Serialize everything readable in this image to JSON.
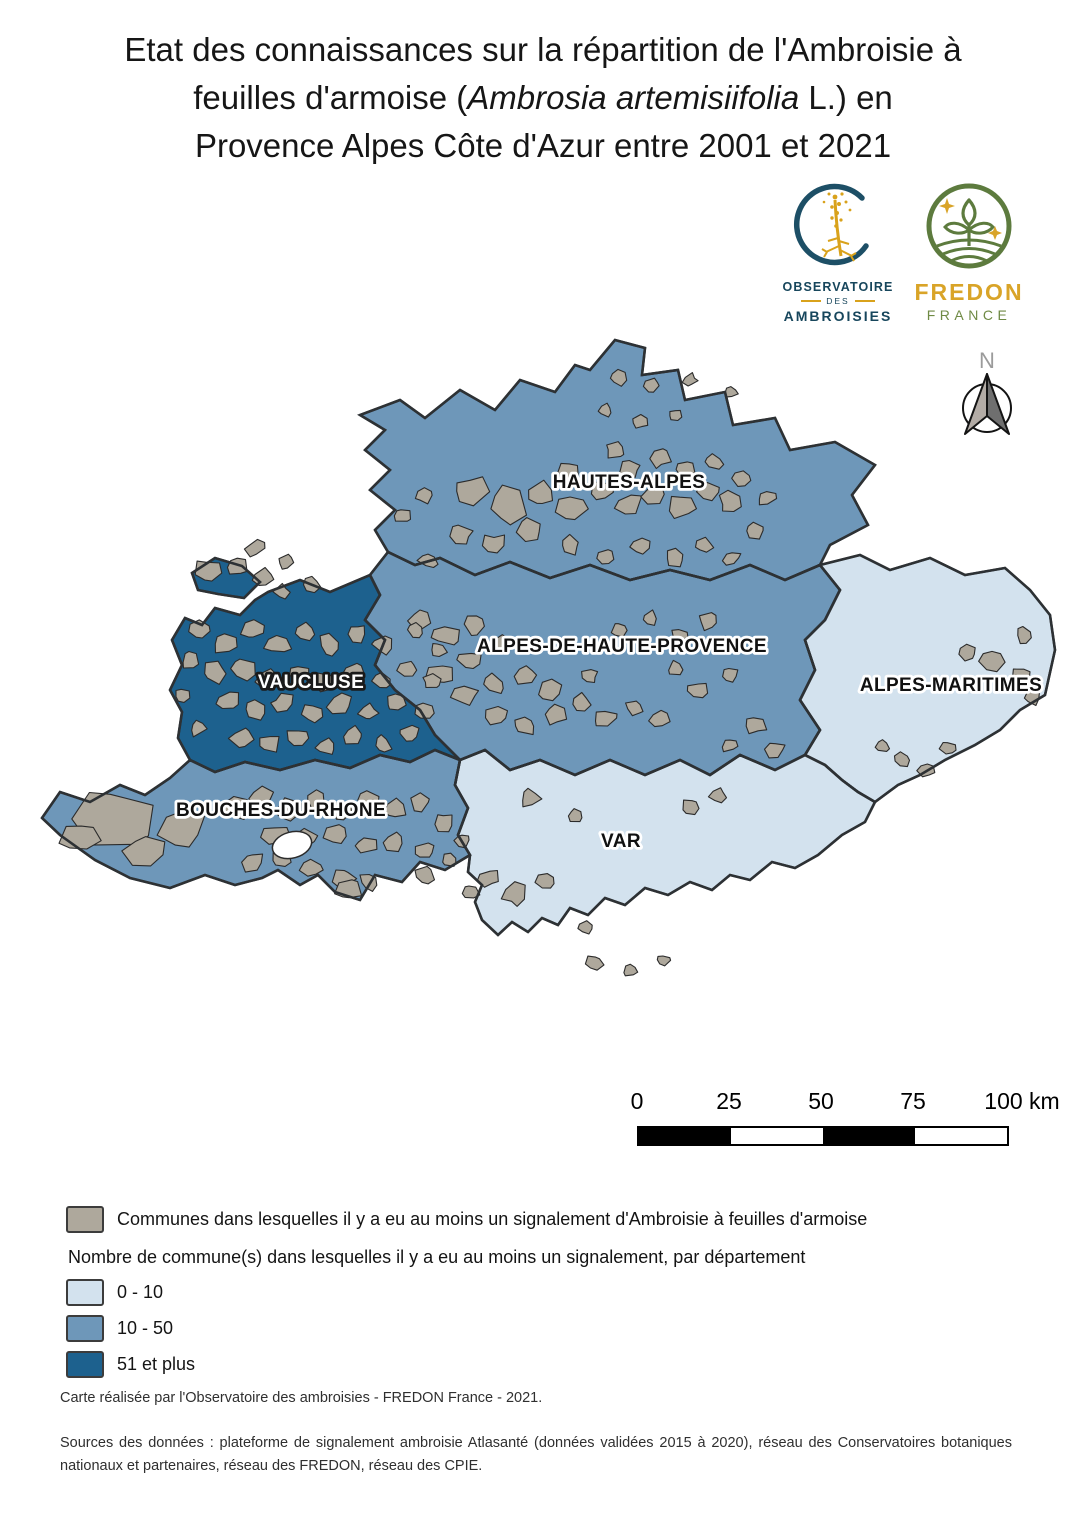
{
  "title": {
    "line1": "Etat des connaissances sur la répartition de l'Ambroisie à",
    "line2_pre": "feuilles d'armoise (",
    "line2_italic": "Ambrosia artemisiifolia",
    "line2_post": " L.) en",
    "line3": "Provence Alpes Côte d'Azur entre 2001 et 2021"
  },
  "logos": {
    "observatoire": {
      "line1": "OBSERVATOIRE",
      "line2": "DES",
      "line3": "AMBROISIES"
    },
    "fredon": {
      "name": "FREDON",
      "country": "FRANCE"
    }
  },
  "map": {
    "north_label": "N",
    "departments": [
      {
        "id": "hautes-alpes",
        "name": "HAUTES-ALPES",
        "category": "10 - 50",
        "color_key": "cat_mid"
      },
      {
        "id": "alpes-de-haute-provence",
        "name": "ALPES-DE-HAUTE-PROVENCE",
        "category": "10 - 50",
        "color_key": "cat_mid"
      },
      {
        "id": "vaucluse",
        "name": "VAUCLUSE",
        "category": "51 et plus",
        "color_key": "cat_high"
      },
      {
        "id": "bouches-du-rhone",
        "name": "BOUCHES-DU-RHONE",
        "category": "10 - 50",
        "color_key": "cat_mid"
      },
      {
        "id": "var",
        "name": "VAR",
        "category": "0 - 10",
        "color_key": "cat_low"
      },
      {
        "id": "alpes-maritimes",
        "name": "ALPES-MARITIMES",
        "category": "0 - 10",
        "color_key": "cat_low"
      }
    ]
  },
  "scalebar": {
    "labels": [
      "0",
      "25",
      "50",
      "75",
      "100 km"
    ]
  },
  "legend": {
    "commune_label": "Communes dans lesquelles il y a eu au moins un signalement d'Ambroisie à feuilles d'armoise",
    "count_title": "Nombre de commune(s) dans lesquelles il y a eu au moins un signalement, par département",
    "classes": [
      {
        "label": "0 - 10",
        "color_key": "cat_low"
      },
      {
        "label": "10 - 50",
        "color_key": "cat_mid"
      },
      {
        "label": "51 et plus",
        "color_key": "cat_high"
      }
    ]
  },
  "credits": {
    "made_by": "Carte réalisée par l'Observatoire des ambroisies - FREDON France - 2021.",
    "sources": "Sources des données : plateforme de signalement ambroisie Atlasanté (données validées 2015 à 2020), réseau des Conservatoires botaniques nationaux et partenaires, réseau des FREDON, réseau des CPIE."
  },
  "colors": {
    "commune_gray": "#aea89c",
    "cat_low": "#d3e2ee",
    "cat_mid": "#6e97b9",
    "cat_high": "#1d618e",
    "border": "#2d3134"
  }
}
